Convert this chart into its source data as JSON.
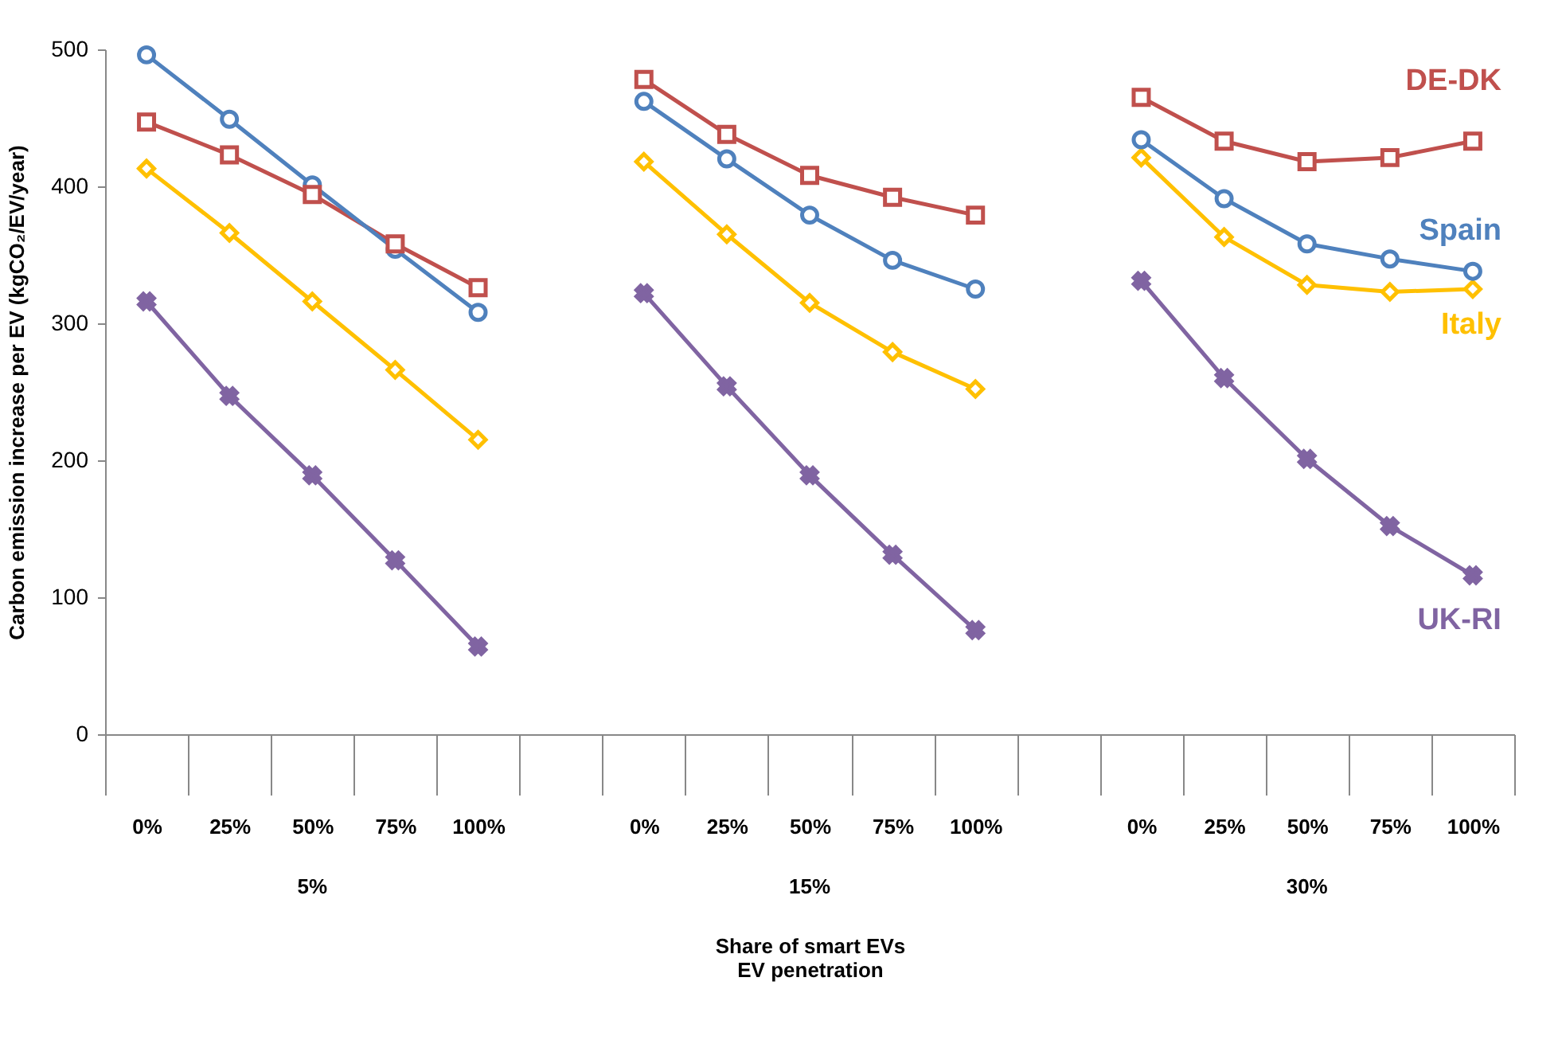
{
  "chart_data": {
    "type": "line",
    "xlabel": "Share of smart EVs\nEV penetration",
    "ylabel": "Carbon emission increase per EV (kgCO₂/EV/year)",
    "categories": [
      "0%",
      "25%",
      "50%",
      "75%",
      "100%",
      null,
      "0%",
      "25%",
      "50%",
      "75%",
      "100%",
      null,
      "0%",
      "25%",
      "50%",
      "75%",
      "100%"
    ],
    "series": [
      {
        "name": "DE-DK",
        "color": "#c0504d",
        "marker": "square",
        "values": [
          447,
          423,
          394,
          358,
          326,
          null,
          478,
          438,
          408,
          392,
          379,
          null,
          465,
          433,
          418,
          421,
          433
        ]
      },
      {
        "name": "Spain",
        "color": "#4f81bd",
        "marker": "circle",
        "values": [
          496,
          449,
          401,
          354,
          308,
          null,
          462,
          420,
          379,
          346,
          325,
          null,
          434,
          391,
          358,
          347,
          338
        ]
      },
      {
        "name": "Italy",
        "color": "#ffc000",
        "marker": "diamond",
        "values": [
          413,
          366,
          316,
          266,
          215,
          null,
          418,
          365,
          315,
          279,
          252,
          null,
          421,
          363,
          328,
          323,
          325
        ]
      },
      {
        "name": "UK-RI",
        "color": "#8064a2",
        "marker": "cross",
        "values": [
          316,
          247,
          189,
          127,
          64,
          null,
          322,
          254,
          189,
          131,
          76,
          null,
          331,
          260,
          201,
          152,
          116
        ]
      }
    ],
    "annotations": [
      "5%",
      "15%",
      "30%"
    ],
    "ylim": [
      0,
      500
    ],
    "yticks": [
      0,
      100,
      200,
      300,
      400,
      500
    ],
    "grid": false,
    "legend": false
  }
}
